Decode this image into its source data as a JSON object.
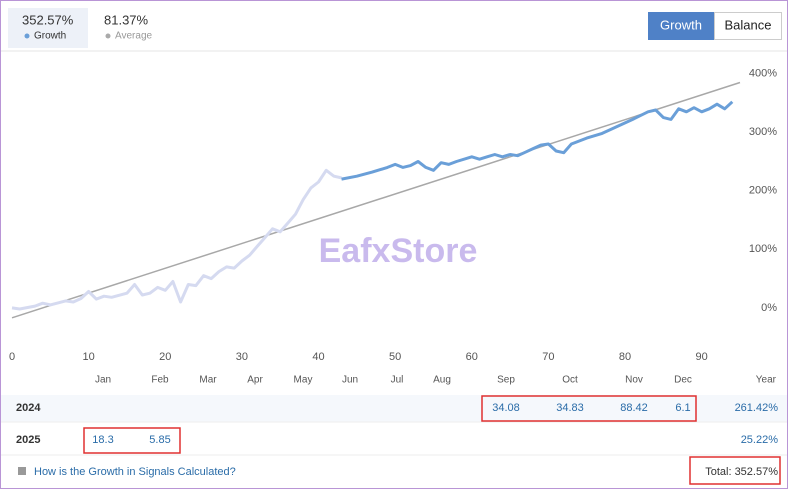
{
  "header": {
    "growth_value": "352.57%",
    "growth_label": "Growth",
    "average_value": "81.37%",
    "average_label": "Average",
    "buttons": [
      "Growth",
      "Balance"
    ]
  },
  "chart_data": {
    "type": "line",
    "watermark": "EafxStore",
    "xlim": [
      0,
      95
    ],
    "xticks": [
      0,
      10,
      20,
      30,
      40,
      50,
      60,
      70,
      80,
      90
    ],
    "ylim": [
      -60,
      420
    ],
    "yticks": [
      {
        "value": 0,
        "label": "0%"
      },
      {
        "value": 100,
        "label": "100%"
      },
      {
        "value": 200,
        "label": "200%"
      },
      {
        "value": 300,
        "label": "300%"
      },
      {
        "value": 400,
        "label": "400%"
      }
    ],
    "grid": false,
    "series": [
      {
        "color": "#d5daf0",
        "x": [
          0,
          1,
          3,
          4,
          5,
          7,
          8,
          9,
          10,
          11,
          12,
          13,
          15,
          16,
          17,
          18,
          19,
          20,
          21,
          22,
          23,
          24,
          25,
          26,
          27,
          28,
          29,
          30,
          31,
          32,
          33,
          34,
          35,
          36,
          37,
          38,
          39,
          40,
          41,
          42,
          43
        ],
        "values": [
          0,
          -2,
          3,
          8,
          5,
          12,
          10,
          16,
          28,
          15,
          20,
          18,
          25,
          40,
          22,
          25,
          35,
          30,
          45,
          10,
          40,
          38,
          55,
          50,
          62,
          70,
          68,
          80,
          90,
          105,
          120,
          135,
          130,
          145,
          160,
          185,
          205,
          215,
          235,
          225,
          222
        ]
      },
      {
        "color": "#6a9fd8",
        "x": [
          43,
          45,
          47,
          49,
          50,
          51,
          52,
          53,
          54,
          55,
          56,
          57,
          58,
          60,
          61,
          62,
          63,
          64,
          65,
          66,
          67,
          68,
          69,
          70,
          71,
          72,
          73,
          75,
          77,
          79,
          81,
          83,
          84,
          85,
          86,
          87,
          88,
          89,
          90,
          91,
          92,
          93,
          94
        ],
        "values": [
          220,
          225,
          232,
          240,
          245,
          240,
          243,
          250,
          240,
          235,
          248,
          245,
          250,
          258,
          254,
          258,
          262,
          258,
          262,
          260,
          266,
          272,
          278,
          280,
          268,
          265,
          280,
          290,
          298,
          310,
          322,
          335,
          338,
          325,
          322,
          340,
          335,
          342,
          335,
          340,
          348,
          340,
          352
        ]
      },
      {
        "color": "#a8a8a8",
        "x": [
          0,
          95
        ],
        "values": [
          -17,
          385
        ]
      }
    ]
  },
  "table": {
    "columns": [
      "Jan",
      "Feb",
      "Mar",
      "Apr",
      "May",
      "Jun",
      "Jul",
      "Aug",
      "Sep",
      "Oct",
      "Nov",
      "Dec",
      "Year"
    ],
    "rows": [
      {
        "year": "2024",
        "cells": [
          null,
          null,
          null,
          null,
          null,
          null,
          null,
          null,
          "34.08",
          "34.83",
          "88.42",
          "6.1",
          "261.42%"
        ]
      },
      {
        "year": "2025",
        "cells": [
          "18.3",
          "5.85",
          null,
          null,
          null,
          null,
          null,
          null,
          null,
          null,
          null,
          null,
          "25.22%"
        ]
      }
    ]
  },
  "footer": {
    "link": "How is the Growth in Signals Calculated?",
    "total": "Total: 352.57%"
  }
}
